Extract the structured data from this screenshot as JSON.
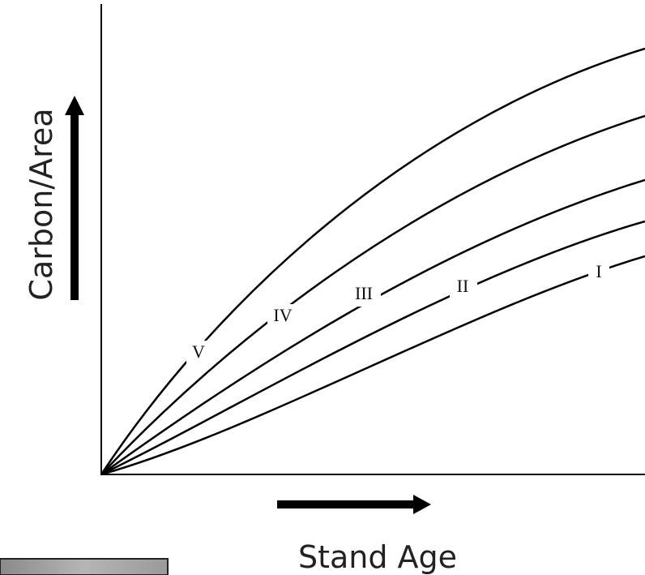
{
  "axes": {
    "y_label": "Carbon/Area",
    "x_label": "Stand Age"
  },
  "curves": [
    {
      "label": "V"
    },
    {
      "label": "IV"
    },
    {
      "label": "III"
    },
    {
      "label": "II"
    },
    {
      "label": "I"
    }
  ]
}
